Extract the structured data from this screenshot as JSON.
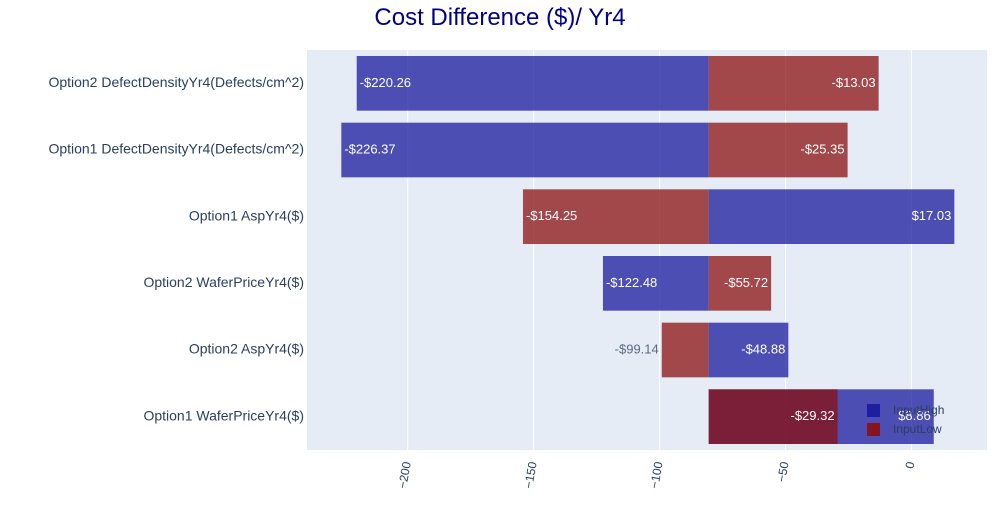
{
  "chart_data": {
    "type": "bar",
    "orientation": "horizontal",
    "barmode": "overlay",
    "title": "Cost Difference ($)/ Yr4",
    "xlabel": "",
    "ylabel": "",
    "base_value": -80.5,
    "xlim": [
      -240,
      30
    ],
    "x_ticks": [
      -200,
      -150,
      -100,
      -50,
      0
    ],
    "x_tick_labels": [
      "−200",
      "−150",
      "−100",
      "−50",
      "0"
    ],
    "grid": true,
    "legend_position": "bottom-right",
    "categories": [
      "Option2 DefectDensityYr4(Defects/cm^2)",
      "Option1 DefectDensityYr4(Defects/cm^2)",
      "Option1 AspYr4($)",
      "Option2 WaferPriceYr4($)",
      "Option2 AspYr4($)",
      "Option1 WaferPriceYr4($)"
    ],
    "series": [
      {
        "name": "InputHigh",
        "color": "#1a1a9e",
        "values": [
          -220.26,
          -226.37,
          17.03,
          -122.48,
          -48.88,
          8.86
        ],
        "labels": [
          "-$220.26",
          "-$226.37",
          "$17.03",
          "-$122.48",
          "-$48.88",
          "$8.86"
        ]
      },
      {
        "name": "InputLow",
        "color": "#8b1010",
        "values": [
          -13.03,
          -25.35,
          -154.25,
          -55.72,
          -99.14,
          -29.32
        ],
        "labels": [
          "-$13.03",
          "-$25.35",
          "-$154.25",
          "-$55.72",
          "-$99.14",
          "-$29.32"
        ]
      }
    ]
  },
  "colors": {
    "plot_background": "#e5ecf6",
    "title": "#00008b",
    "tick_text": "#2a3f5f",
    "grid": "#ffffff"
  }
}
